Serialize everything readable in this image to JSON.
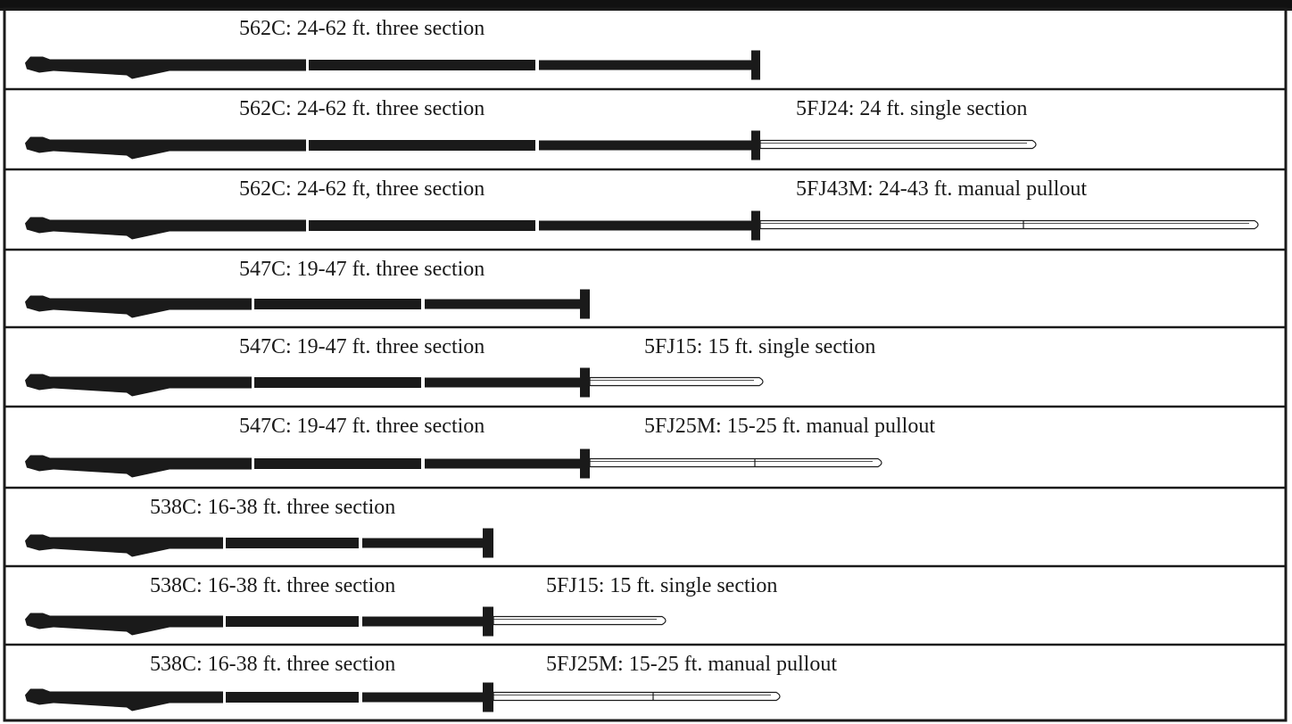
{
  "rows": [
    {
      "main": {
        "label": "562C: 24-62 ft. three section",
        "model": "562C"
      },
      "jib": null
    },
    {
      "main": {
        "label": "562C: 24-62 ft. three section",
        "model": "562C"
      },
      "jib": {
        "label": "5FJ24: 24 ft. single section",
        "type": "single"
      }
    },
    {
      "main": {
        "label": "562C: 24-62 ft, three section",
        "model": "562C"
      },
      "jib": {
        "label": "5FJ43M: 24-43 ft. manual pullout",
        "type": "pullout"
      }
    },
    {
      "main": {
        "label": "547C: 19-47 ft. three section",
        "model": "547C"
      },
      "jib": null
    },
    {
      "main": {
        "label": "547C: 19-47 ft. three section",
        "model": "547C"
      },
      "jib": {
        "label": "5FJ15: 15 ft. single section",
        "type": "single"
      }
    },
    {
      "main": {
        "label": "547C: 19-47 ft. three section",
        "model": "547C"
      },
      "jib": {
        "label": "5FJ25M: 15-25 ft. manual pullout",
        "type": "pullout"
      }
    },
    {
      "main": {
        "label": "538C: 16-38 ft. three section",
        "model": "538C"
      },
      "jib": null
    },
    {
      "main": {
        "label": "538C: 16-38 ft. three section",
        "model": "538C"
      },
      "jib": {
        "label": "5FJ15: 15 ft. single section",
        "type": "single"
      }
    },
    {
      "main": {
        "label": "538C: 16-38 ft. three section",
        "model": "538C"
      },
      "jib": {
        "label": "5FJ25M: 15-25 ft. manual pullout",
        "type": "pullout"
      }
    }
  ],
  "colors": {
    "boom": "#1a1a1a",
    "jib_fill": "#ffffff",
    "jib_stroke": "#1a1a1a",
    "border": "#1a1a1a",
    "header": "#111111",
    "background": "#ffffff"
  }
}
